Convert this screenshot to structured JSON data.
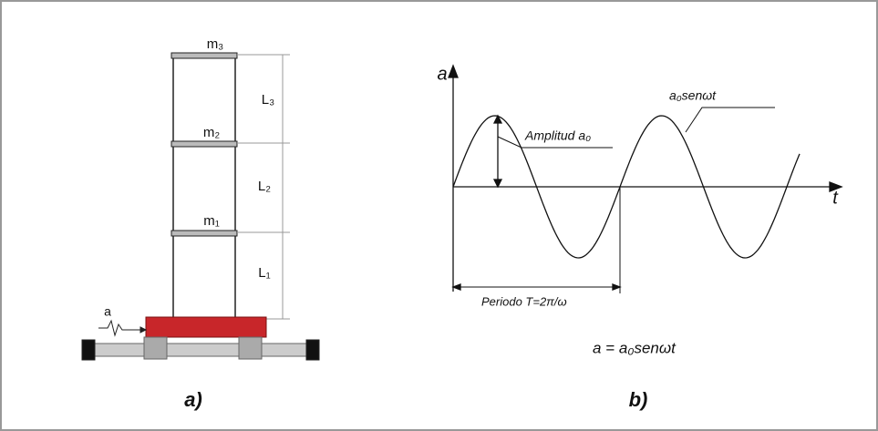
{
  "panel_a": {
    "masses": [
      "m₃",
      "m₂",
      "m₁"
    ],
    "lengths": [
      "L₃",
      "L₂",
      "L₁"
    ],
    "input": "a",
    "caption": "a)"
  },
  "panel_b": {
    "y_axis": "a",
    "x_axis": "t",
    "amplitude": "Amplitud a₀",
    "curve": "a₀senωt",
    "period": "Periodo T=2π/ω",
    "formula": "a = a₀senωt",
    "caption": "b)"
  }
}
